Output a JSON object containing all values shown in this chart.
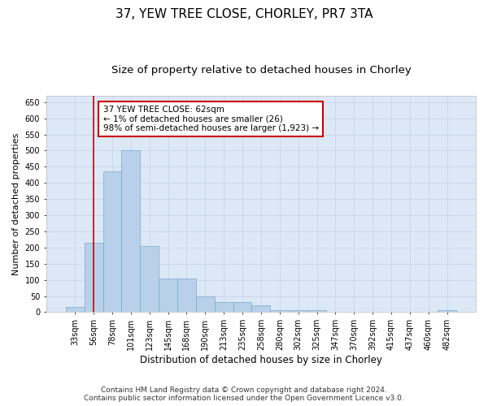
{
  "title": "37, YEW TREE CLOSE, CHORLEY, PR7 3TA",
  "subtitle": "Size of property relative to detached houses in Chorley",
  "xlabel": "Distribution of detached houses by size in Chorley",
  "ylabel": "Number of detached properties",
  "categories": [
    "33sqm",
    "56sqm",
    "78sqm",
    "101sqm",
    "123sqm",
    "145sqm",
    "168sqm",
    "190sqm",
    "213sqm",
    "235sqm",
    "258sqm",
    "280sqm",
    "302sqm",
    "325sqm",
    "347sqm",
    "370sqm",
    "392sqm",
    "415sqm",
    "437sqm",
    "460sqm",
    "482sqm"
  ],
  "values": [
    15,
    215,
    435,
    500,
    205,
    105,
    105,
    50,
    30,
    30,
    20,
    5,
    5,
    5,
    0,
    0,
    0,
    0,
    0,
    0,
    5
  ],
  "bar_color": "#b8d0ea",
  "bar_edge_color": "#7aaac8",
  "bar_width": 1.0,
  "vline_x": 1,
  "vline_color": "#cc0000",
  "annotation_text": "37 YEW TREE CLOSE: 62sqm\n← 1% of detached houses are smaller (26)\n98% of semi-detached houses are larger (1,923) →",
  "annotation_box_color": "#ffffff",
  "annotation_box_edge": "#cc0000",
  "ylim": [
    0,
    670
  ],
  "yticks": [
    0,
    50,
    100,
    150,
    200,
    250,
    300,
    350,
    400,
    450,
    500,
    550,
    600,
    650
  ],
  "grid_color": "#c8d8eb",
  "background_color": "#dce8f5",
  "footer": "Contains HM Land Registry data © Crown copyright and database right 2024.\nContains public sector information licensed under the Open Government Licence v3.0.",
  "title_fontsize": 11,
  "subtitle_fontsize": 9.5,
  "xlabel_fontsize": 8.5,
  "ylabel_fontsize": 8,
  "tick_fontsize": 7,
  "footer_fontsize": 6.5,
  "ann_fontsize": 7.5
}
